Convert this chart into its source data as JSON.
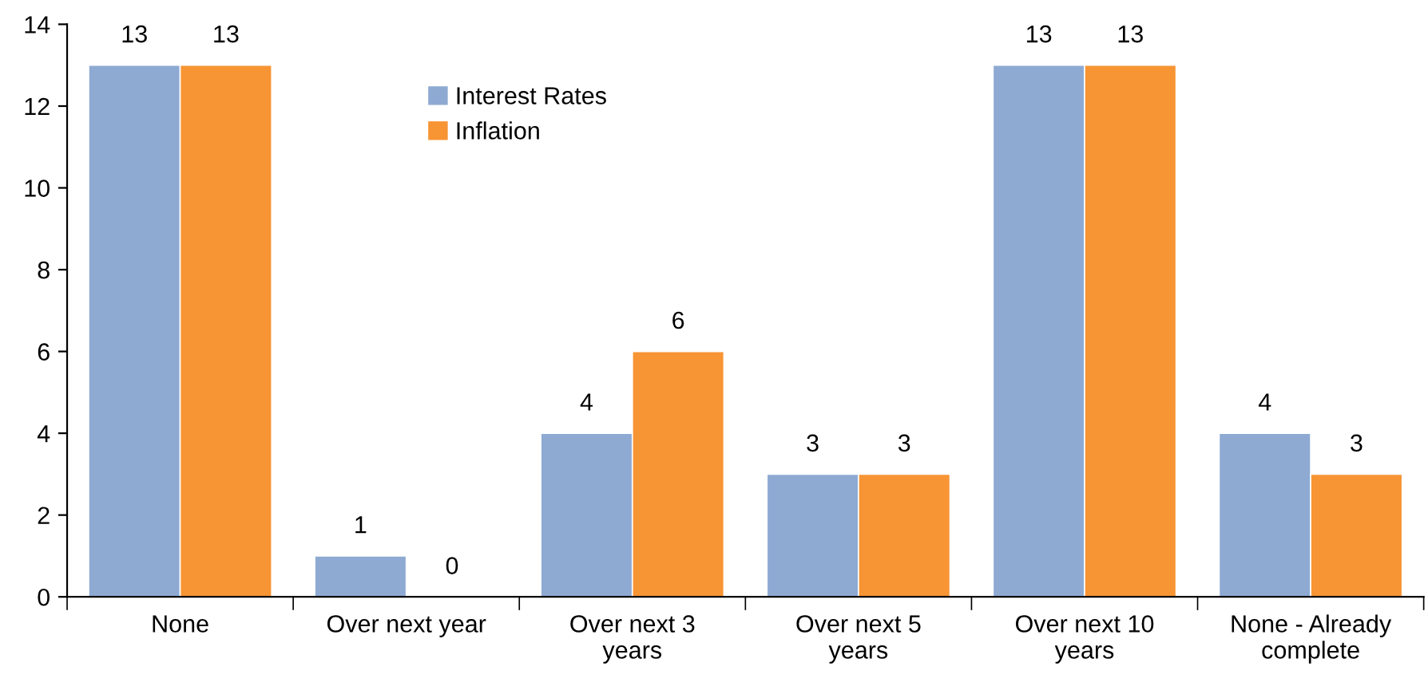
{
  "chart_data": {
    "type": "bar",
    "categories": [
      "None",
      "Over next year",
      "Over next 3\nyears",
      "Over next 5\nyears",
      "Over next 10\nyears",
      "None - Already\ncomplete"
    ],
    "series": [
      {
        "name": "Interest Rates",
        "color": "#8eaad3",
        "values": [
          13,
          1,
          4,
          3,
          13,
          4
        ]
      },
      {
        "name": "Inflation",
        "color": "#f79433",
        "values": [
          13,
          0,
          6,
          3,
          13,
          3
        ]
      }
    ],
    "ylim": [
      0,
      14
    ],
    "yticks": [
      0,
      2,
      4,
      6,
      8,
      10,
      12,
      14
    ],
    "data_labels": true,
    "legend": "top",
    "grid": false
  }
}
